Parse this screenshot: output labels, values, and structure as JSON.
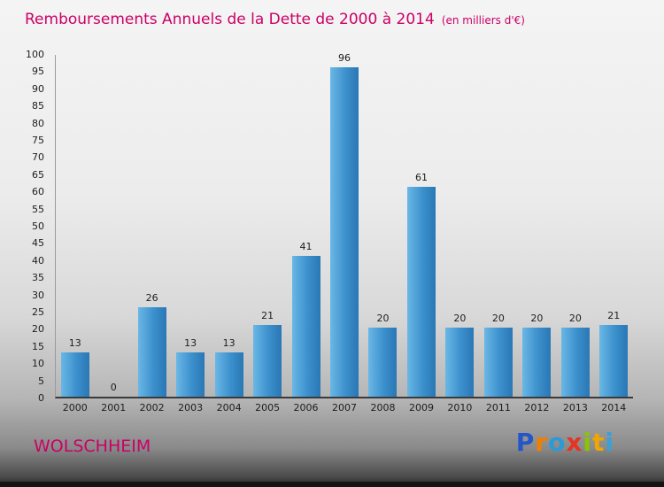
{
  "chart_data": {
    "type": "bar",
    "title": "Remboursements Annuels de la Dette de 2000 à 2014",
    "subtitle": "(en milliers d'€)",
    "categories": [
      "2000",
      "2001",
      "2002",
      "2003",
      "2004",
      "2005",
      "2006",
      "2007",
      "2008",
      "2009",
      "2010",
      "2011",
      "2012",
      "2013",
      "2014"
    ],
    "values": [
      13,
      0,
      26,
      13,
      13,
      21,
      41,
      96,
      20,
      61,
      20,
      20,
      20,
      20,
      21
    ],
    "xlabel": "",
    "ylabel": "",
    "ylim": [
      0,
      100
    ],
    "ytick_step": 5,
    "grid": false,
    "legend_position": "none",
    "bar_color_top": "#6ab7e6",
    "bar_color_bottom": "#2a77b5"
  },
  "footer": {
    "commune": "WOLSCHHEIM"
  },
  "logo": {
    "text": "Proxiti",
    "letters": [
      {
        "ch": "P",
        "color": "#2456c9"
      },
      {
        "ch": "r",
        "color": "#f07f00"
      },
      {
        "ch": "o",
        "color": "#2d9ad4"
      },
      {
        "ch": "x",
        "color": "#e63322"
      },
      {
        "ch": "i",
        "color": "#8bc400"
      },
      {
        "ch": "t",
        "color": "#f0a500"
      },
      {
        "ch": "i",
        "color": "#3aa0d8"
      }
    ]
  },
  "colors": {
    "accent": "#cc0066",
    "axis_text": "#1d1d1d"
  }
}
